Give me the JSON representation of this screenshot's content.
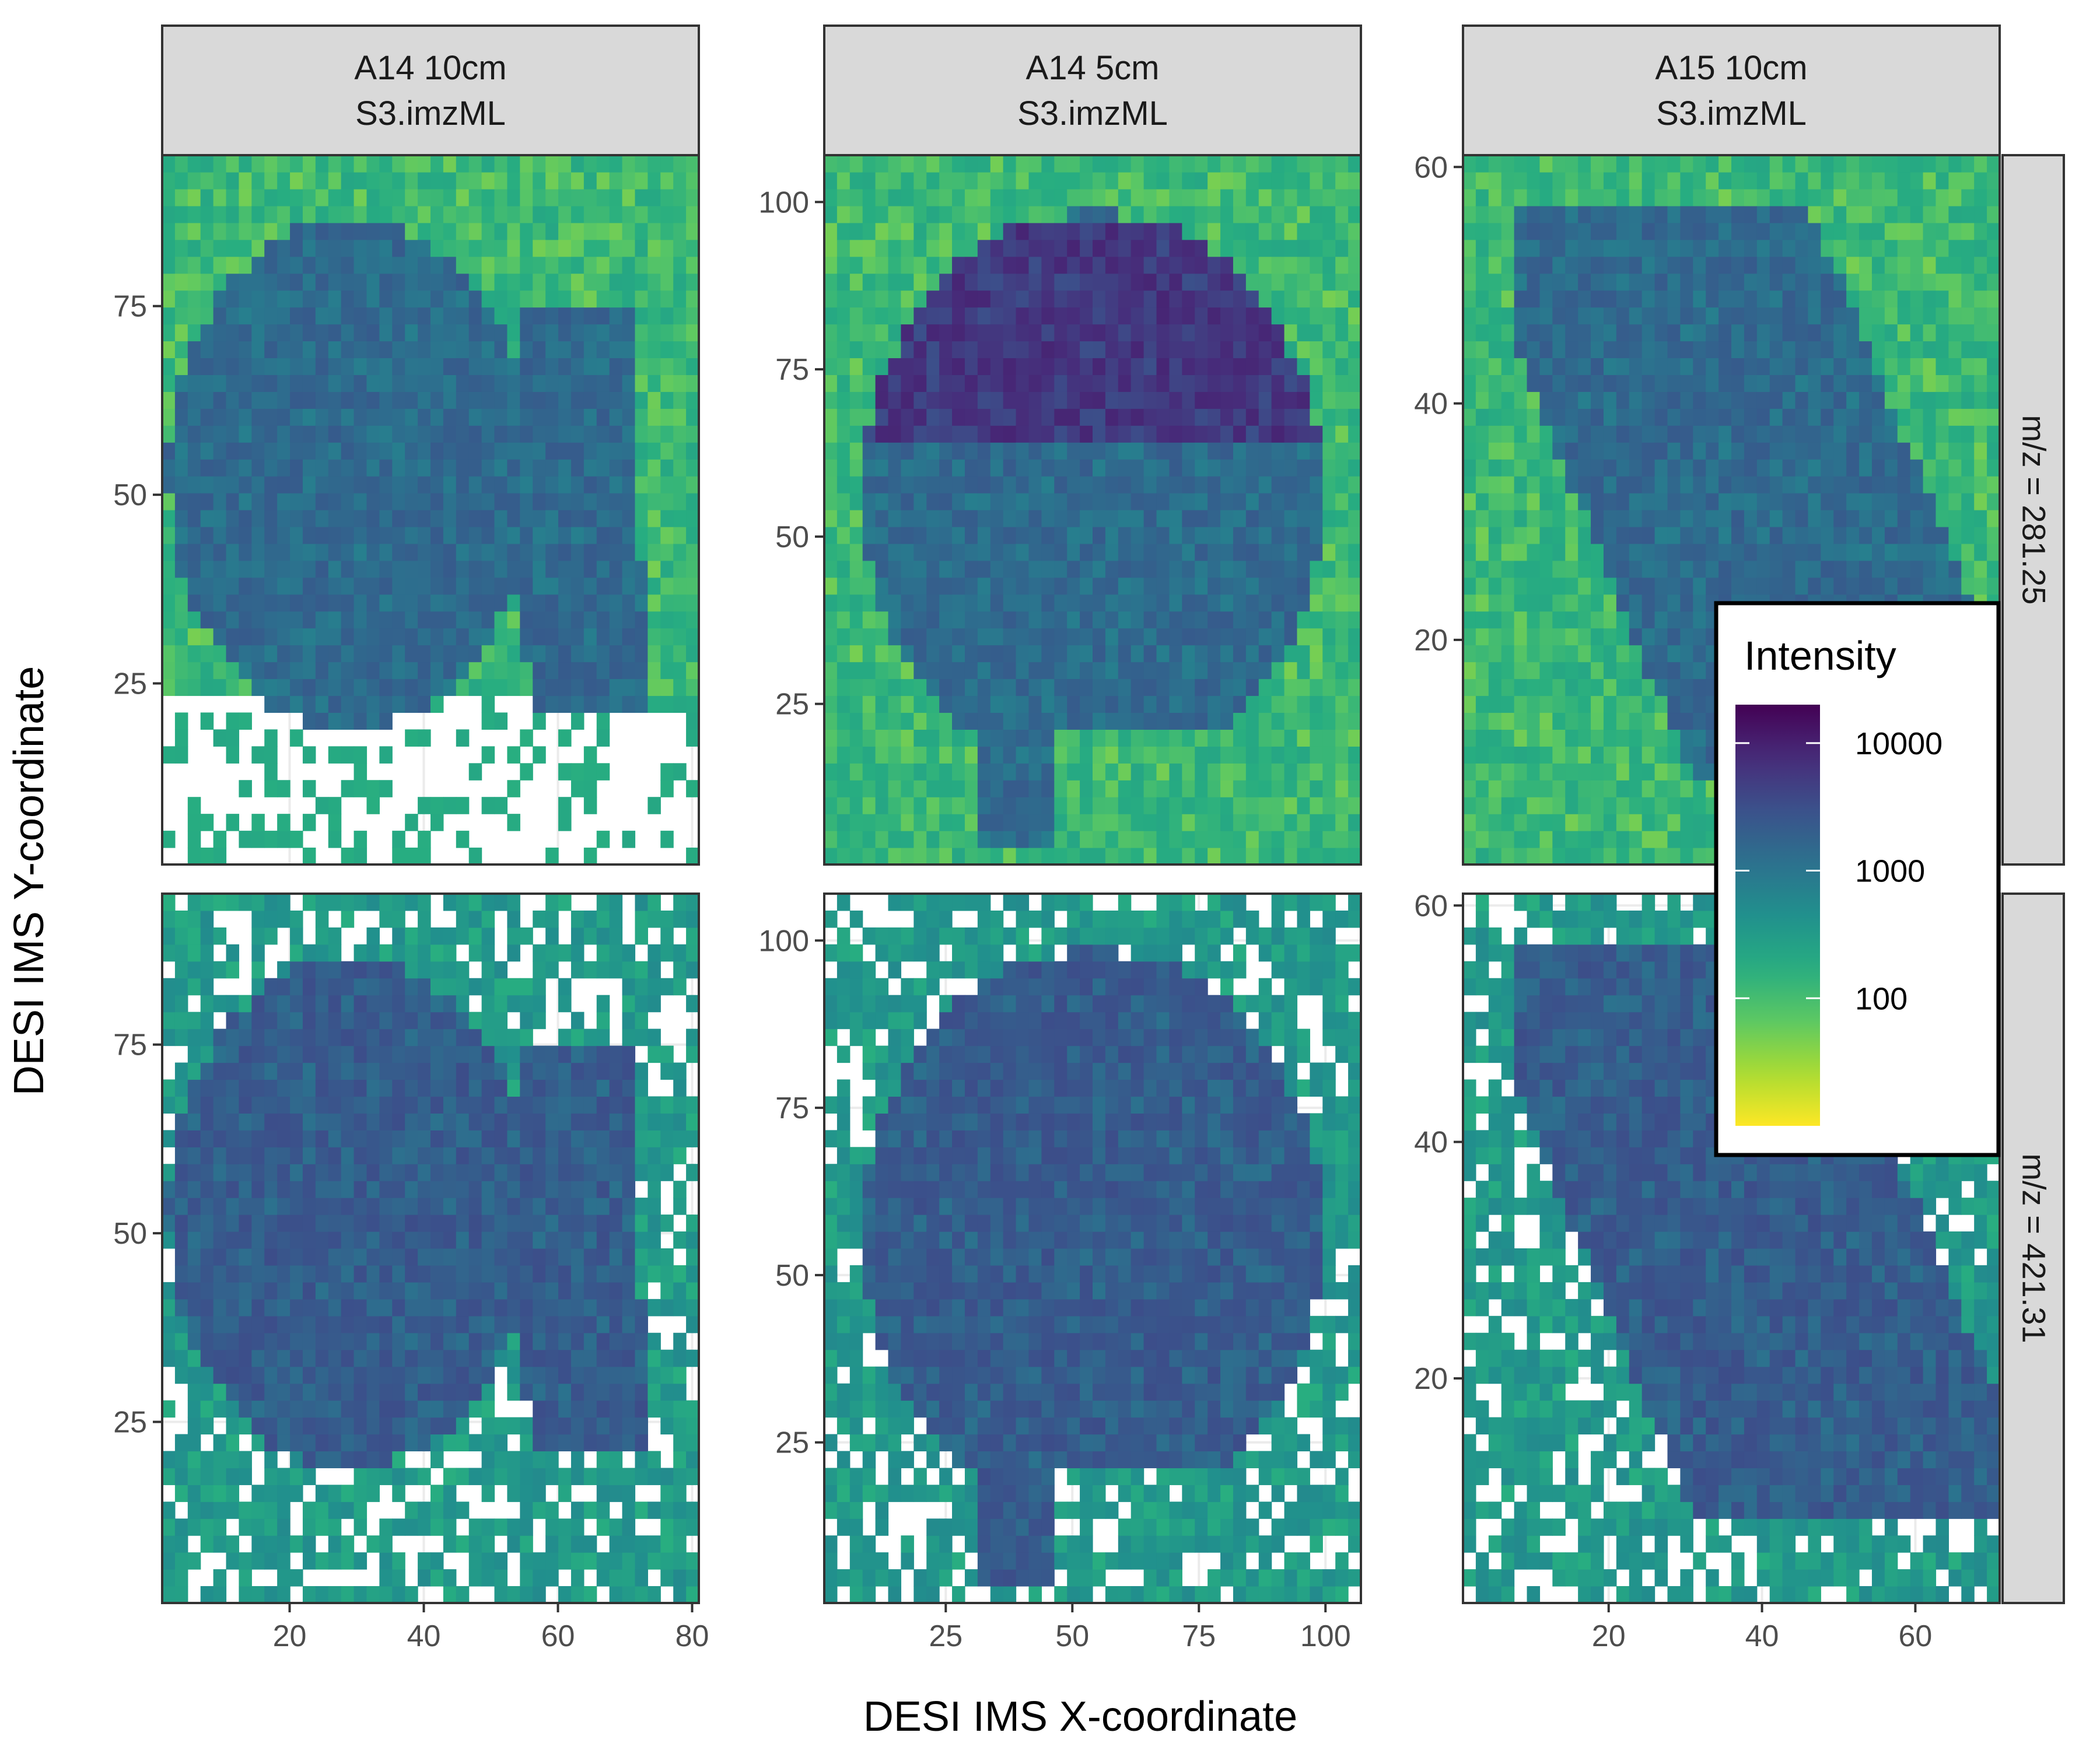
{
  "chart_data": {
    "type": "heatmap",
    "xlabel": "DESI IMS X-coordinate",
    "ylabel": "DESI IMS Y-coordinate",
    "legend": {
      "title": "Intensity",
      "scale": "log10",
      "colormap": "viridis (reversed: high intensity = dark purple)",
      "ticks": [
        {
          "value": 10000,
          "label": "10000"
        },
        {
          "value": 1000,
          "label": "1000"
        },
        {
          "value": 100,
          "label": "100"
        }
      ],
      "range": [
        10,
        20000
      ],
      "placement": "inside, overlapping right column"
    },
    "facet_columns": [
      {
        "title_line1": "A14 10cm",
        "title_line2": "S3.imzML",
        "xlim": [
          1,
          81
        ],
        "ylim": [
          1,
          95
        ],
        "xticks": [
          {
            "value": 20,
            "label": "20"
          },
          {
            "value": 40,
            "label": "40"
          },
          {
            "value": 60,
            "label": "60"
          },
          {
            "value": 80,
            "label": "80"
          }
        ],
        "yticks": [
          {
            "value": 25,
            "label": "25"
          },
          {
            "value": 50,
            "label": "50"
          },
          {
            "value": 75,
            "label": "75"
          }
        ]
      },
      {
        "title_line1": "A14 5cm",
        "title_line2": "S3.imzML",
        "xlim": [
          1,
          107
        ],
        "ylim": [
          1,
          107
        ],
        "xticks": [
          {
            "value": 25,
            "label": "25"
          },
          {
            "value": 50,
            "label": "50"
          },
          {
            "value": 75,
            "label": "75"
          },
          {
            "value": 100,
            "label": "100"
          }
        ],
        "yticks": [
          {
            "value": 25,
            "label": "25"
          },
          {
            "value": 50,
            "label": "50"
          },
          {
            "value": 75,
            "label": "75"
          },
          {
            "value": 100,
            "label": "100"
          }
        ]
      },
      {
        "title_line1": "A15 10cm",
        "title_line2": "S3.imzML",
        "xlim": [
          1,
          71
        ],
        "ylim": [
          1,
          61
        ],
        "xticks": [
          {
            "value": 20,
            "label": "20"
          },
          {
            "value": 40,
            "label": "40"
          },
          {
            "value": 60,
            "label": "60"
          }
        ],
        "yticks": [
          {
            "value": 20,
            "label": "20"
          },
          {
            "value": 40,
            "label": "40"
          },
          {
            "value": 60,
            "label": "60"
          }
        ]
      }
    ],
    "facet_rows": [
      {
        "label": "m/z = 281.25"
      },
      {
        "label": "m/z = 421.31"
      }
    ],
    "colors": {
      "strip_fill": "#d9d9d9",
      "panel_border": "#333333",
      "grid": "#ebebeb",
      "tick_text": "#4d4d4d"
    }
  }
}
